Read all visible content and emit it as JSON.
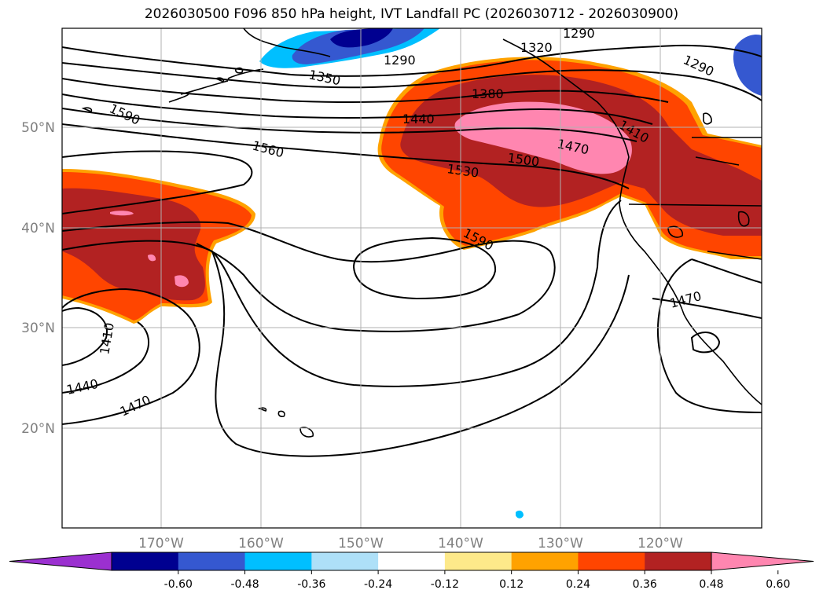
{
  "title": "2026030500 F096 850 hPa height, IVT Landfall PC (2026030712 - 2026030900)",
  "lat_labels": [
    "50°N",
    "40°N",
    "30°N",
    "20°N"
  ],
  "lon_labels": [
    "170°W",
    "160°W",
    "150°W",
    "140°W",
    "130°W",
    "120°W"
  ],
  "colorbar": {
    "labels": [
      "-0.60",
      "-0.48",
      "-0.36",
      "-0.24",
      "-0.12",
      "0.12",
      "0.24",
      "0.36",
      "0.48",
      "0.60"
    ],
    "colors": [
      "#9b30d0",
      "#000090",
      "#3558d0",
      "#00bfff",
      "#aee0f8",
      "#ffffff",
      "#fde98a",
      "#ffa200",
      "#ff4500",
      "#b22222",
      "#ff86b0"
    ]
  },
  "contour_labels": [
    "1290",
    "1290",
    "1290",
    "1320",
    "1350",
    "1380",
    "1410",
    "1410",
    "1440",
    "1440",
    "1470",
    "1470",
    "1470",
    "1500",
    "1530",
    "1560",
    "1590",
    "1590"
  ],
  "colors": {
    "pos_low": "#ffa200",
    "pos_mid": "#ff4500",
    "pos_high": "#b22222",
    "pos_max": "#ff86b0",
    "neg_dark": "#000090",
    "neg_mid": "#3558d0",
    "neg_light": "#00bfff"
  }
}
